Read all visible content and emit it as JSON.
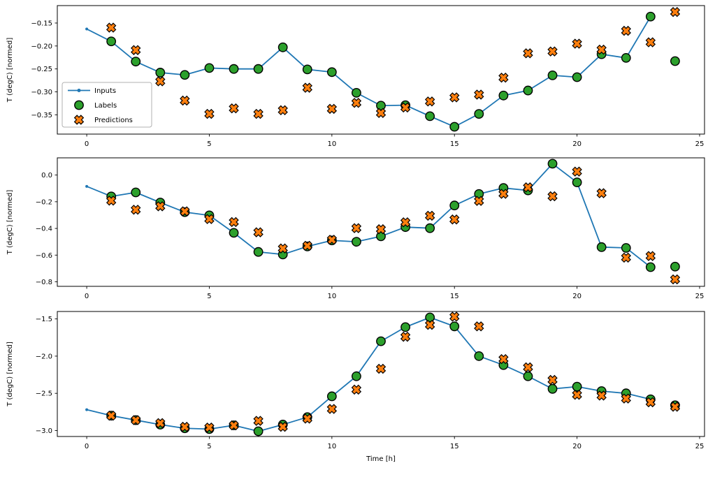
{
  "figure": {
    "background": "#ffffff",
    "xlabel": "Time [h]",
    "ylabel": "T (degC) [normed]",
    "colors": {
      "inputs_line": "#1f77b4",
      "labels_marker": "#2ca02c",
      "predictions_marker": "#ff7f0e",
      "marker_edge": "#000000",
      "legend_border": "#b0b0b0",
      "spine": "#000000"
    },
    "legend": {
      "entries": [
        {
          "label": "Inputs",
          "type": "line"
        },
        {
          "label": "Labels",
          "type": "circle"
        },
        {
          "label": "Predictions",
          "type": "x"
        }
      ]
    }
  },
  "chart_data": [
    {
      "type": "line",
      "title": "",
      "xlabel": "",
      "ylabel": "T (degC) [normed]",
      "xlim": [
        -1.2,
        25.2
      ],
      "ylim": [
        -0.392,
        -0.112
      ],
      "xticks": [
        0,
        5,
        10,
        15,
        20,
        25
      ],
      "xtick_labels": [
        "0",
        "5",
        "10",
        "15",
        "20",
        "25"
      ],
      "yticks": [
        -0.15,
        -0.2,
        -0.25,
        -0.3,
        -0.35
      ],
      "ytick_labels": [
        "−0.15",
        "−0.20",
        "−0.25",
        "−0.30",
        "−0.35"
      ],
      "grid": false,
      "legend": true,
      "series": [
        {
          "name": "Inputs",
          "type": "line",
          "x": [
            0,
            1,
            2,
            3,
            4,
            5,
            6,
            7,
            8,
            9,
            10,
            11,
            12,
            13,
            14,
            15,
            16,
            17,
            18,
            19,
            20,
            21,
            22,
            23
          ],
          "y": [
            -0.163,
            -0.19,
            -0.234,
            -0.258,
            -0.263,
            -0.248,
            -0.25,
            -0.25,
            -0.203,
            -0.251,
            -0.257,
            -0.302,
            -0.33,
            -0.329,
            -0.353,
            -0.376,
            -0.348,
            -0.308,
            -0.297,
            -0.264,
            -0.268,
            -0.218,
            -0.226,
            -0.136
          ]
        },
        {
          "name": "Labels",
          "type": "scatter-circle",
          "x": [
            1,
            2,
            3,
            4,
            5,
            6,
            7,
            8,
            9,
            10,
            11,
            12,
            13,
            14,
            15,
            16,
            17,
            18,
            19,
            20,
            21,
            22,
            23,
            24
          ],
          "y": [
            -0.19,
            -0.234,
            -0.258,
            -0.263,
            -0.248,
            -0.25,
            -0.25,
            -0.203,
            -0.251,
            -0.257,
            -0.302,
            -0.33,
            -0.329,
            -0.353,
            -0.376,
            -0.348,
            -0.308,
            -0.297,
            -0.264,
            -0.268,
            -0.218,
            -0.226,
            -0.136,
            -0.233
          ]
        },
        {
          "name": "Predictions",
          "type": "scatter-x",
          "x": [
            1,
            2,
            3,
            4,
            5,
            6,
            7,
            8,
            9,
            10,
            11,
            12,
            13,
            14,
            15,
            16,
            17,
            18,
            19,
            20,
            21,
            22,
            23,
            24
          ],
          "y": [
            -0.16,
            -0.209,
            -0.277,
            -0.319,
            -0.348,
            -0.336,
            -0.348,
            -0.34,
            -0.291,
            -0.337,
            -0.324,
            -0.346,
            -0.334,
            -0.321,
            -0.312,
            -0.306,
            -0.269,
            -0.216,
            -0.212,
            -0.195,
            -0.208,
            -0.167,
            -0.192,
            -0.126
          ]
        }
      ]
    },
    {
      "type": "line",
      "title": "",
      "xlabel": "",
      "ylabel": "T (degC) [normed]",
      "xlim": [
        -1.2,
        25.2
      ],
      "ylim": [
        -0.834,
        0.129
      ],
      "xticks": [
        0,
        5,
        10,
        15,
        20,
        25
      ],
      "xtick_labels": [
        "0",
        "5",
        "10",
        "15",
        "20",
        "25"
      ],
      "yticks": [
        0.0,
        -0.2,
        -0.4,
        -0.6,
        -0.8
      ],
      "ytick_labels": [
        "0.0",
        "−0.2",
        "−0.4",
        "−0.6",
        "−0.8"
      ],
      "grid": false,
      "legend": false,
      "series": [
        {
          "name": "Inputs",
          "type": "line",
          "x": [
            0,
            1,
            2,
            3,
            4,
            5,
            6,
            7,
            8,
            9,
            10,
            11,
            12,
            13,
            14,
            15,
            16,
            17,
            18,
            19,
            20,
            21,
            22,
            23
          ],
          "y": [
            -0.085,
            -0.16,
            -0.13,
            -0.206,
            -0.278,
            -0.302,
            -0.433,
            -0.576,
            -0.595,
            -0.535,
            -0.49,
            -0.5,
            -0.459,
            -0.39,
            -0.398,
            -0.228,
            -0.142,
            -0.097,
            -0.115,
            0.085,
            -0.055,
            -0.54,
            -0.546,
            -0.69
          ]
        },
        {
          "name": "Labels",
          "type": "scatter-circle",
          "x": [
            1,
            2,
            3,
            4,
            5,
            6,
            7,
            8,
            9,
            10,
            11,
            12,
            13,
            14,
            15,
            16,
            17,
            18,
            19,
            20,
            21,
            22,
            23,
            24
          ],
          "y": [
            -0.16,
            -0.13,
            -0.206,
            -0.278,
            -0.302,
            -0.433,
            -0.576,
            -0.595,
            -0.535,
            -0.49,
            -0.5,
            -0.459,
            -0.39,
            -0.398,
            -0.228,
            -0.142,
            -0.097,
            -0.115,
            0.085,
            -0.055,
            -0.54,
            -0.546,
            -0.69,
            -0.686
          ]
        },
        {
          "name": "Predictions",
          "type": "scatter-x",
          "x": [
            1,
            2,
            3,
            4,
            5,
            6,
            7,
            8,
            9,
            10,
            11,
            12,
            13,
            14,
            15,
            16,
            17,
            18,
            19,
            20,
            21,
            22,
            23,
            24
          ],
          "y": [
            -0.192,
            -0.26,
            -0.234,
            -0.272,
            -0.33,
            -0.352,
            -0.429,
            -0.55,
            -0.53,
            -0.485,
            -0.398,
            -0.406,
            -0.354,
            -0.305,
            -0.333,
            -0.194,
            -0.141,
            -0.092,
            -0.159,
            0.026,
            -0.136,
            -0.619,
            -0.607,
            -0.782
          ]
        }
      ]
    },
    {
      "type": "line",
      "title": "",
      "xlabel": "Time [h]",
      "ylabel": "T (degC) [normed]",
      "xlim": [
        -1.2,
        25.2
      ],
      "ylim": [
        -3.08,
        -1.4
      ],
      "xticks": [
        0,
        5,
        10,
        15,
        20,
        25
      ],
      "xtick_labels": [
        "0",
        "5",
        "10",
        "15",
        "20",
        "25"
      ],
      "yticks": [
        -1.5,
        -2.0,
        -2.5,
        -3.0
      ],
      "ytick_labels": [
        "−1.5",
        "−2.0",
        "−2.5",
        "−3.0"
      ],
      "grid": false,
      "legend": false,
      "series": [
        {
          "name": "Inputs",
          "type": "line",
          "x": [
            0,
            1,
            2,
            3,
            4,
            5,
            6,
            7,
            8,
            9,
            10,
            11,
            12,
            13,
            14,
            15,
            16,
            17,
            18,
            19,
            20,
            21,
            22,
            23
          ],
          "y": [
            -2.72,
            -2.8,
            -2.86,
            -2.92,
            -2.97,
            -2.98,
            -2.93,
            -3.01,
            -2.92,
            -2.82,
            -2.54,
            -2.27,
            -1.8,
            -1.61,
            -1.48,
            -1.6,
            -2.0,
            -2.12,
            -2.27,
            -2.44,
            -2.41,
            -2.47,
            -2.5,
            -2.58
          ]
        },
        {
          "name": "Labels",
          "type": "scatter-circle",
          "x": [
            1,
            2,
            3,
            4,
            5,
            6,
            7,
            8,
            9,
            10,
            11,
            12,
            13,
            14,
            15,
            16,
            17,
            18,
            19,
            20,
            21,
            22,
            23,
            24
          ],
          "y": [
            -2.8,
            -2.86,
            -2.92,
            -2.97,
            -2.98,
            -2.93,
            -3.01,
            -2.92,
            -2.82,
            -2.54,
            -2.27,
            -1.8,
            -1.61,
            -1.48,
            -1.6,
            -2.0,
            -2.12,
            -2.27,
            -2.44,
            -2.41,
            -2.47,
            -2.5,
            -2.58,
            -2.66
          ]
        },
        {
          "name": "Predictions",
          "type": "scatter-x",
          "x": [
            1,
            2,
            3,
            4,
            5,
            6,
            7,
            8,
            9,
            10,
            11,
            12,
            13,
            14,
            15,
            16,
            17,
            18,
            19,
            20,
            21,
            22,
            23,
            24
          ],
          "y": [
            -2.8,
            -2.86,
            -2.9,
            -2.95,
            -2.96,
            -2.93,
            -2.87,
            -2.95,
            -2.84,
            -2.71,
            -2.45,
            -2.17,
            -1.74,
            -1.58,
            -1.47,
            -1.6,
            -2.04,
            -2.15,
            -2.32,
            -2.52,
            -2.53,
            -2.57,
            -2.62,
            -2.68
          ]
        }
      ]
    }
  ]
}
